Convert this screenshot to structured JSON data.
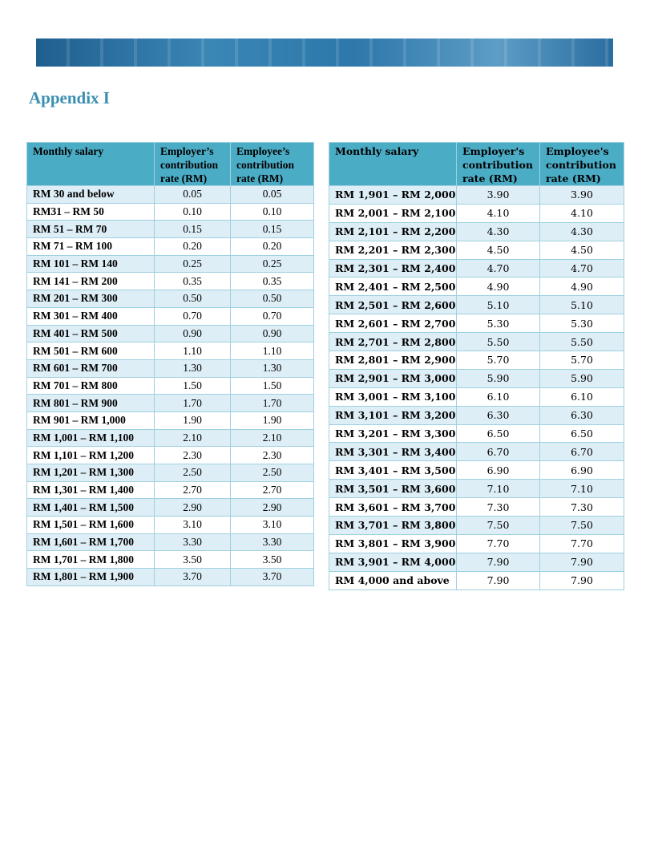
{
  "title": "Appendix I",
  "tables": [
    {
      "header": [
        "Monthly salary",
        "Employer’s contribution rate (RM)",
        "Employee’s contribution rate (RM)"
      ],
      "rows": [
        [
          "RM 30 and below",
          "0.05",
          "0.05"
        ],
        [
          "RM31 – RM 50",
          "0.10",
          "0.10"
        ],
        [
          "RM 51 – RM 70",
          "0.15",
          "0.15"
        ],
        [
          "RM 71 – RM 100",
          "0.20",
          "0.20"
        ],
        [
          "RM 101 – RM 140",
          "0.25",
          "0.25"
        ],
        [
          "RM 141 – RM 200",
          "0.35",
          "0.35"
        ],
        [
          "RM 201 – RM 300",
          "0.50",
          "0.50"
        ],
        [
          "RM 301 – RM 400",
          "0.70",
          "0.70"
        ],
        [
          "RM 401 – RM 500",
          "0.90",
          "0.90"
        ],
        [
          "RM 501 – RM 600",
          "1.10",
          "1.10"
        ],
        [
          "RM 601 – RM 700",
          "1.30",
          "1.30"
        ],
        [
          "RM 701 – RM 800",
          "1.50",
          "1.50"
        ],
        [
          "RM 801 – RM 900",
          "1.70",
          "1.70"
        ],
        [
          "RM 901 – RM 1,000",
          "1.90",
          "1.90"
        ],
        [
          "RM 1,001 – RM 1,100",
          "2.10",
          "2.10"
        ],
        [
          "RM 1,101 – RM 1,200",
          "2.30",
          "2.30"
        ],
        [
          "RM 1,201 – RM 1,300",
          "2.50",
          "2.50"
        ],
        [
          "RM 1,301 – RM 1,400",
          "2.70",
          "2.70"
        ],
        [
          "RM 1,401 – RM 1,500",
          "2.90",
          "2.90"
        ],
        [
          "RM 1,501 – RM 1,600",
          "3.10",
          "3.10"
        ],
        [
          "RM 1,601 – RM 1,700",
          "3.30",
          "3.30"
        ],
        [
          "RM 1,701 – RM 1,800",
          "3.50",
          "3.50"
        ],
        [
          "RM 1,801 – RM 1,900",
          "3.70",
          "3.70"
        ]
      ]
    },
    {
      "header": [
        "Monthly salary",
        "Employer's contribution rate (RM)",
        "Employee's contribution rate (RM)"
      ],
      "rows": [
        [
          "RM 1,901 – RM 2,000",
          "3.90",
          "3.90"
        ],
        [
          "RM 2,001 – RM 2,100",
          "4.10",
          "4.10"
        ],
        [
          "RM 2,101 – RM 2,200",
          "4.30",
          "4.30"
        ],
        [
          "RM 2,201 – RM 2,300",
          "4.50",
          "4.50"
        ],
        [
          "RM 2,301 – RM 2,400",
          "4.70",
          "4.70"
        ],
        [
          "RM 2,401 – RM 2,500",
          "4.90",
          "4.90"
        ],
        [
          "RM 2,501 – RM 2,600",
          "5.10",
          "5.10"
        ],
        [
          "RM 2,601 – RM 2,700",
          "5.30",
          "5.30"
        ],
        [
          "RM 2,701 – RM 2,800",
          "5.50",
          "5.50"
        ],
        [
          "RM 2,801 – RM 2,900",
          "5.70",
          "5.70"
        ],
        [
          "RM 2,901 – RM 3,000",
          "5.90",
          "5.90"
        ],
        [
          "RM 3,001 – RM 3,100",
          "6.10",
          "6.10"
        ],
        [
          "RM 3,101 – RM 3,200",
          "6.30",
          "6.30"
        ],
        [
          "RM 3,201 – RM 3,300",
          "6.50",
          "6.50"
        ],
        [
          "RM 3,301 – RM 3,400",
          "6.70",
          "6.70"
        ],
        [
          "RM 3,401 – RM 3,500",
          "6.90",
          "6.90"
        ],
        [
          "RM 3,501 – RM 3,600",
          "7.10",
          "7.10"
        ],
        [
          "RM 3,601 – RM 3,700",
          "7.30",
          "7.30"
        ],
        [
          "RM 3,701 – RM 3,800",
          "7.50",
          "7.50"
        ],
        [
          "RM 3,801 – RM 3,900",
          "7.70",
          "7.70"
        ],
        [
          "RM 3,901 – RM 4,000",
          "7.90",
          "7.90"
        ],
        [
          "RM 4,000 and above",
          "7.90",
          "7.90"
        ]
      ]
    }
  ]
}
